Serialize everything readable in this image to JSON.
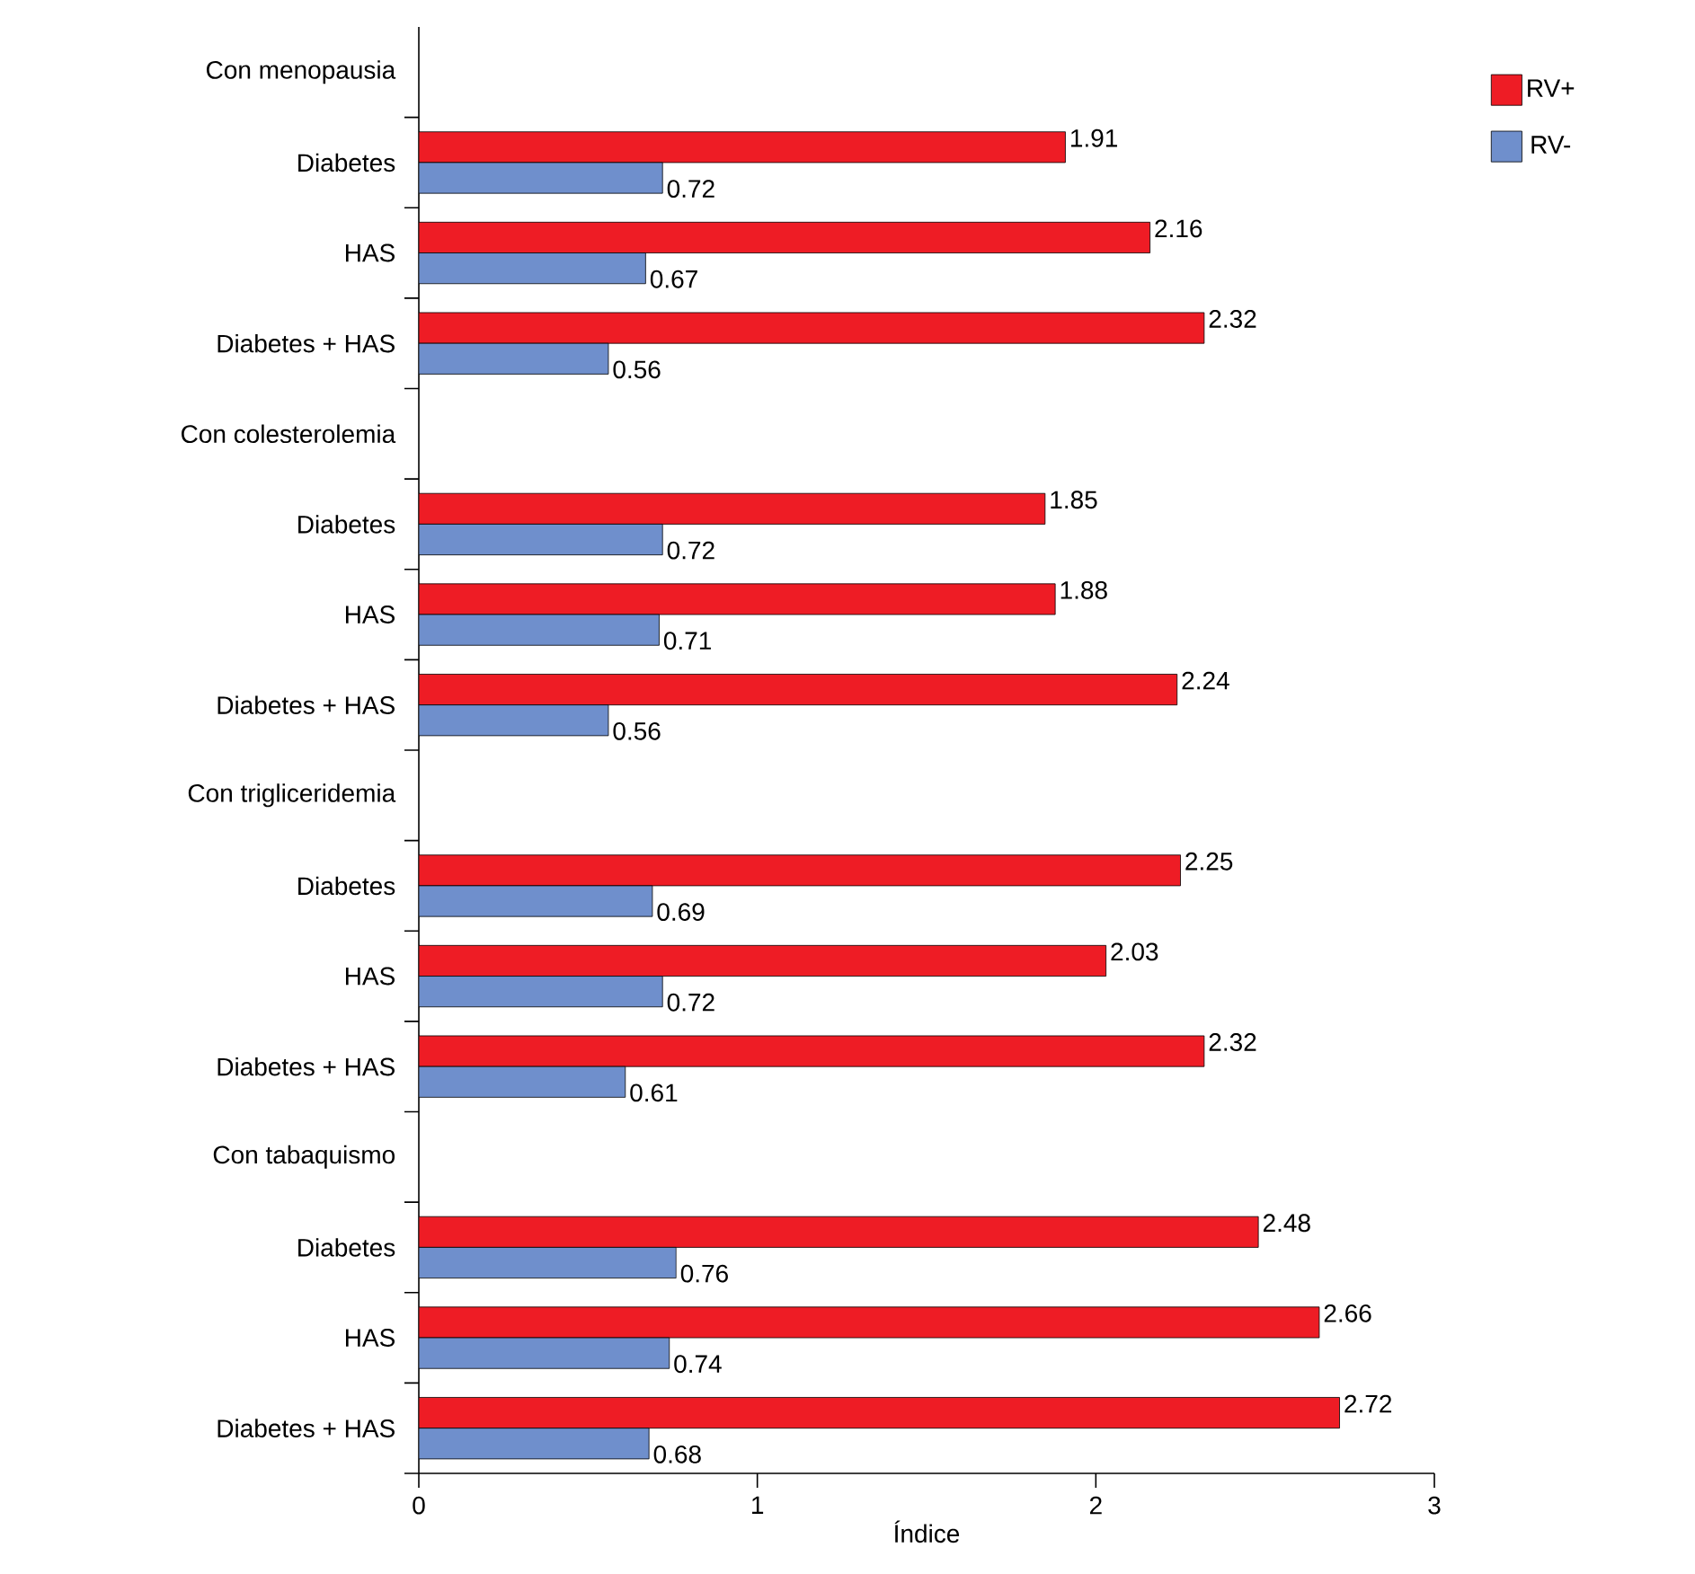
{
  "chart_data": {
    "type": "bar",
    "orientation": "horizontal",
    "xlabel": "Índice",
    "categories": [
      "Con menopausia",
      "Diabetes",
      "HAS",
      "Diabetes + HAS",
      "Con colesterolemia",
      "Diabetes",
      "HAS",
      "Diabetes + HAS",
      "Con trigliceridemia",
      "Diabetes",
      "HAS",
      "Diabetes + HAS",
      "Con tabaquismo",
      "Diabetes",
      "HAS",
      "Diabetes + HAS"
    ],
    "series": [
      {
        "name": "RV+",
        "color": "#ee1c25",
        "values": [
          null,
          1.91,
          2.16,
          2.32,
          null,
          1.85,
          1.88,
          2.24,
          null,
          2.25,
          2.03,
          2.32,
          null,
          2.48,
          2.66,
          2.72
        ]
      },
      {
        "name": "RV-",
        "color": "#6f8fcc",
        "values": [
          null,
          0.72,
          0.67,
          0.56,
          null,
          0.72,
          0.71,
          0.56,
          null,
          0.69,
          0.72,
          0.61,
          null,
          0.76,
          0.74,
          0.68
        ]
      }
    ],
    "xlim": [
      0,
      3
    ],
    "xticks": [
      0,
      1,
      2,
      3
    ],
    "data_labels": true,
    "legend": "top right",
    "grid": false
  }
}
